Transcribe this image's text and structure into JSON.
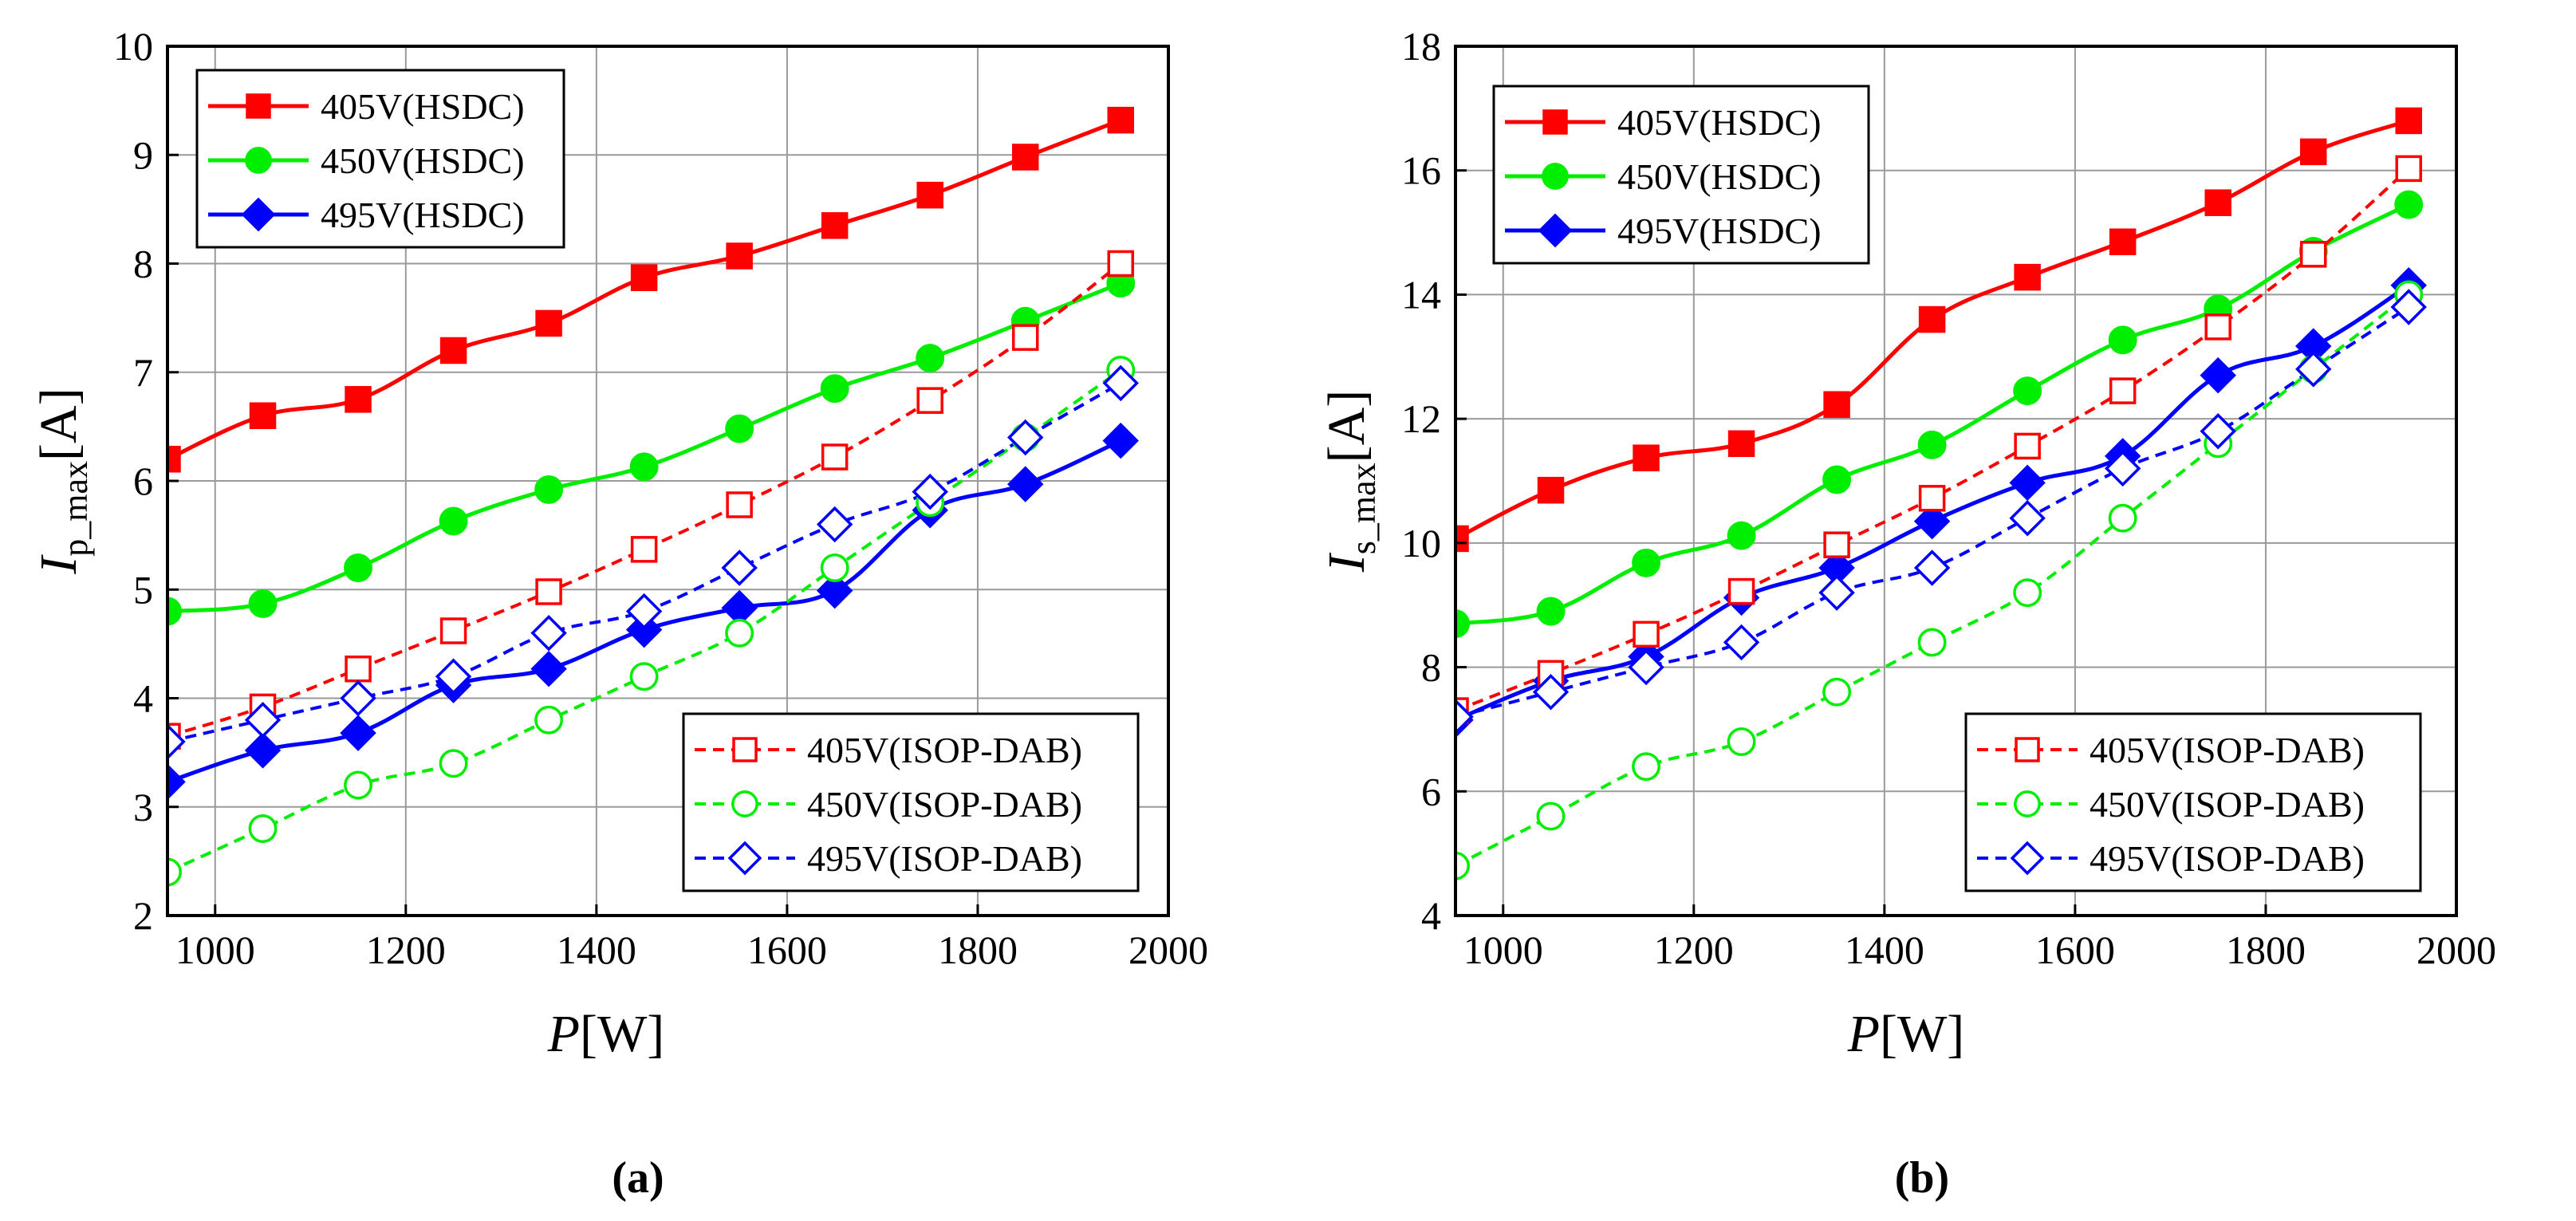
{
  "chart_data": [
    {
      "type": "line",
      "panel_label": "(a)",
      "xlabel": {
        "main": "P",
        "unit": "[W]"
      },
      "ylabel": {
        "main": "I",
        "sub": "p_max",
        "unit": "[A]"
      },
      "xlim": [
        950,
        2000
      ],
      "ylim": [
        2,
        10
      ],
      "xticks": [
        1000,
        1200,
        1400,
        1600,
        1800,
        2000
      ],
      "yticks": [
        2,
        3,
        4,
        5,
        6,
        7,
        8,
        9,
        10
      ],
      "grid": true,
      "x": [
        950,
        1050,
        1150,
        1250,
        1350,
        1450,
        1550,
        1650,
        1750,
        1850,
        1950
      ],
      "series": [
        {
          "name": "405V(HSDC)",
          "color": "#ff0000",
          "marker": "square",
          "filled": true,
          "dashed": false,
          "values": [
            6.2,
            6.6,
            6.75,
            7.2,
            7.45,
            7.87,
            8.07,
            8.35,
            8.63,
            8.98,
            9.32
          ]
        },
        {
          "name": "450V(HSDC)",
          "color": "#00ee00",
          "marker": "circle",
          "filled": true,
          "dashed": false,
          "values": [
            4.8,
            4.87,
            5.2,
            5.63,
            5.92,
            6.13,
            6.48,
            6.85,
            7.13,
            7.47,
            7.82
          ]
        },
        {
          "name": "495V(HSDC)",
          "color": "#0000ff",
          "marker": "diamond",
          "filled": true,
          "dashed": false,
          "values": [
            3.23,
            3.52,
            3.68,
            4.12,
            4.27,
            4.63,
            4.83,
            4.99,
            5.73,
            5.97,
            6.37
          ]
        },
        {
          "name": "405V(ISOP-DAB)",
          "color": "#ff0000",
          "marker": "square",
          "filled": false,
          "dashed": true,
          "values": [
            3.65,
            3.92,
            4.27,
            4.62,
            4.98,
            5.37,
            5.78,
            6.22,
            6.74,
            7.32,
            8.0
          ]
        },
        {
          "name": "450V(ISOP-DAB)",
          "color": "#00ee00",
          "marker": "circle",
          "filled": false,
          "dashed": true,
          "values": [
            2.4,
            2.8,
            3.2,
            3.4,
            3.8,
            4.2,
            4.6,
            5.2,
            5.8,
            6.4,
            7.02
          ]
        },
        {
          "name": "495V(ISOP-DAB)",
          "color": "#0000ff",
          "marker": "diamond",
          "filled": false,
          "dashed": true,
          "values": [
            3.6,
            3.8,
            4.0,
            4.2,
            4.6,
            4.8,
            5.2,
            5.6,
            5.9,
            6.4,
            6.9
          ]
        }
      ],
      "legend": [
        {
          "position": "top-left",
          "entries": [
            "405V(HSDC)",
            "450V(HSDC)",
            "495V(HSDC)"
          ]
        },
        {
          "position": "bottom-right",
          "entries": [
            "405V(ISOP-DAB)",
            "450V(ISOP-DAB)",
            "495V(ISOP-DAB)"
          ]
        }
      ]
    },
    {
      "type": "line",
      "panel_label": "(b)",
      "xlabel": {
        "main": "P",
        "unit": "[W]"
      },
      "ylabel": {
        "main": "I",
        "sub": "s_max",
        "unit": "[A]"
      },
      "xlim": [
        950,
        2000
      ],
      "ylim": [
        4,
        18
      ],
      "xticks": [
        1000,
        1200,
        1400,
        1600,
        1800,
        2000
      ],
      "yticks": [
        4,
        6,
        8,
        10,
        12,
        14,
        16,
        18
      ],
      "grid": true,
      "x": [
        950,
        1050,
        1150,
        1250,
        1350,
        1450,
        1550,
        1650,
        1750,
        1850,
        1950
      ],
      "series": [
        {
          "name": "405V(HSDC)",
          "color": "#ff0000",
          "marker": "square",
          "filled": true,
          "dashed": false,
          "values": [
            10.07,
            10.85,
            11.37,
            11.6,
            12.23,
            13.6,
            14.28,
            14.85,
            15.48,
            16.3,
            16.8
          ]
        },
        {
          "name": "450V(HSDC)",
          "color": "#00ee00",
          "marker": "circle",
          "filled": true,
          "dashed": false,
          "values": [
            8.7,
            8.9,
            9.68,
            10.12,
            11.02,
            11.58,
            12.45,
            13.27,
            13.77,
            14.7,
            15.45
          ]
        },
        {
          "name": "495V(HSDC)",
          "color": "#0000ff",
          "marker": "diamond",
          "filled": true,
          "dashed": false,
          "values": [
            7.15,
            7.78,
            8.17,
            9.12,
            9.6,
            10.35,
            10.97,
            11.4,
            12.7,
            13.17,
            14.15
          ]
        },
        {
          "name": "405V(ISOP-DAB)",
          "color": "#ff0000",
          "marker": "square",
          "filled": false,
          "dashed": true,
          "values": [
            7.3,
            7.9,
            8.53,
            9.22,
            9.97,
            10.72,
            11.56,
            12.45,
            13.48,
            14.65,
            16.03
          ]
        },
        {
          "name": "450V(ISOP-DAB)",
          "color": "#00ee00",
          "marker": "circle",
          "filled": false,
          "dashed": true,
          "values": [
            4.8,
            5.6,
            6.4,
            6.8,
            7.6,
            8.4,
            9.2,
            10.4,
            11.6,
            12.8,
            14.0
          ]
        },
        {
          "name": "495V(ISOP-DAB)",
          "color": "#0000ff",
          "marker": "diamond",
          "filled": false,
          "dashed": true,
          "values": [
            7.2,
            7.6,
            8.0,
            8.4,
            9.2,
            9.6,
            10.4,
            11.2,
            11.8,
            12.8,
            13.8
          ]
        }
      ],
      "legend": [
        {
          "position": "top-left",
          "entries": [
            "405V(HSDC)",
            "450V(HSDC)",
            "495V(HSDC)"
          ]
        },
        {
          "position": "bottom-right",
          "entries": [
            "405V(ISOP-DAB)",
            "450V(ISOP-DAB)",
            "495V(ISOP-DAB)"
          ]
        }
      ]
    }
  ]
}
